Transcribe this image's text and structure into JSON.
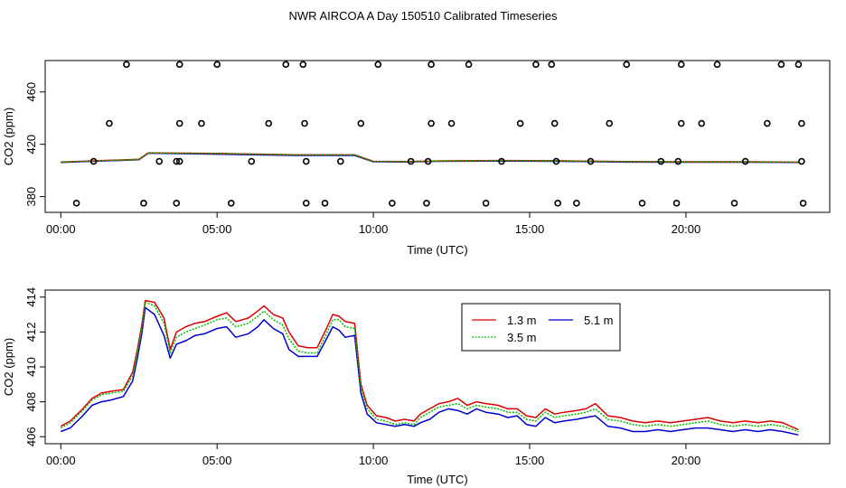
{
  "title": "NWR AIRCOA A  Day 150510  Calibrated Timeseries",
  "colors": {
    "h1": "#dd0000",
    "h2": "#00bb00",
    "h3": "#0000cc",
    "axis": "#000000",
    "cal": "#000000"
  },
  "chart_data": [
    {
      "type": "scatter",
      "title": "",
      "xlabel": "Time (UTC)",
      "ylabel": "CO2 (ppm)",
      "xlim": [
        -0.5,
        24.6
      ],
      "ylim": [
        368,
        484
      ],
      "xticks": [
        0,
        5,
        10,
        15,
        20
      ],
      "xtick_labels": [
        "00:00",
        "05:00",
        "10:00",
        "15:00",
        "20:00"
      ],
      "yticks": [
        380,
        420,
        460
      ],
      "ytick_labels": [
        "380",
        "420",
        "460"
      ],
      "calibration_points": {
        "x": [
          2.1,
          3.8,
          5.0,
          7.2,
          7.75,
          10.15,
          11.85,
          13.05,
          15.2,
          15.7,
          18.1,
          19.85,
          21.0,
          23.05,
          23.6,
          1.55,
          3.8,
          4.5,
          6.65,
          7.8,
          9.6,
          11.85,
          12.5,
          14.7,
          15.8,
          17.55,
          19.85,
          20.5,
          22.6,
          23.7,
          1.05,
          3.15,
          3.7,
          3.8,
          6.1,
          7.85,
          8.95,
          11.2,
          11.75,
          14.1,
          15.85,
          16.95,
          19.2,
          19.75,
          21.9,
          23.7,
          0.5,
          2.65,
          3.7,
          5.45,
          7.85,
          8.45,
          10.6,
          11.7,
          13.6,
          15.9,
          16.5,
          18.6,
          19.7,
          21.55,
          23.75
        ],
        "y": [
          481,
          481,
          481,
          481,
          481,
          481,
          481,
          481,
          481,
          481,
          481,
          481,
          481,
          481,
          481,
          436,
          436,
          436,
          436,
          436,
          436,
          436,
          436,
          436,
          436,
          436,
          436,
          436,
          436,
          436,
          407,
          407,
          407,
          407,
          407,
          407,
          407,
          407,
          407,
          407,
          407,
          407,
          407,
          407,
          407,
          407,
          375,
          375,
          375,
          375,
          375,
          375,
          375,
          375,
          375,
          375,
          375,
          375,
          375,
          375,
          375
        ]
      },
      "series": [
        {
          "name": "1.3 m",
          "x": [
            0,
            2.5,
            2.8,
            5,
            7.5,
            9.4,
            10,
            11,
            12,
            14,
            16,
            18,
            20,
            22,
            23.6
          ],
          "values": [
            406.5,
            408.5,
            413.5,
            413,
            412,
            412,
            407,
            406.8,
            407.3,
            407.6,
            407.4,
            406.8,
            406.7,
            406.7,
            406.4
          ]
        },
        {
          "name": "3.5 m",
          "x": [
            0,
            2.5,
            2.8,
            5,
            7.5,
            9.4,
            10,
            11,
            12,
            14,
            16,
            18,
            20,
            22,
            23.6
          ],
          "values": [
            406.4,
            408.4,
            413.4,
            412.9,
            411.9,
            411.9,
            406.9,
            406.7,
            407.2,
            407.5,
            407.3,
            406.7,
            406.6,
            406.6,
            406.3
          ]
        },
        {
          "name": "5.1 m",
          "x": [
            0,
            2.5,
            2.8,
            5,
            7.5,
            9.4,
            10,
            11,
            12,
            14,
            16,
            18,
            20,
            22,
            23.6
          ],
          "values": [
            406.2,
            408.2,
            413.2,
            412.5,
            411.5,
            411.5,
            406.7,
            406.5,
            407.0,
            407.2,
            407.0,
            406.4,
            406.3,
            406.3,
            406.1
          ]
        }
      ]
    },
    {
      "type": "line",
      "title": "",
      "xlabel": "Time (UTC)",
      "ylabel": "CO2 (ppm)",
      "xlim": [
        -0.5,
        24.6
      ],
      "ylim": [
        405.6,
        414.4
      ],
      "xticks": [
        0,
        5,
        10,
        15,
        20
      ],
      "xtick_labels": [
        "00:00",
        "05:00",
        "10:00",
        "15:00",
        "20:00"
      ],
      "yticks": [
        406,
        408,
        410,
        412,
        414
      ],
      "ytick_labels": [
        "406",
        "408",
        "410",
        "412",
        "414"
      ],
      "legend": {
        "position": "top-center",
        "entries": [
          "1.3 m",
          "3.5 m",
          "5.1 m"
        ]
      },
      "series": [
        {
          "name": "1.3 m",
          "x": [
            0,
            0.3,
            0.7,
            1.0,
            1.3,
            1.6,
            2.0,
            2.3,
            2.45,
            2.6,
            2.7,
            3.0,
            3.3,
            3.5,
            3.7,
            4.0,
            4.3,
            4.6,
            5.0,
            5.3,
            5.6,
            6.0,
            6.3,
            6.5,
            6.8,
            7.1,
            7.3,
            7.6,
            7.9,
            8.2,
            8.5,
            8.7,
            8.9,
            9.1,
            9.4,
            9.6,
            9.8,
            10.1,
            10.4,
            10.7,
            11.0,
            11.3,
            11.5,
            11.8,
            12.1,
            12.4,
            12.7,
            13.0,
            13.3,
            13.6,
            14.0,
            14.3,
            14.6,
            14.9,
            15.2,
            15.5,
            15.8,
            16.1,
            16.5,
            16.8,
            17.1,
            17.5,
            17.9,
            18.3,
            18.7,
            19.1,
            19.5,
            19.9,
            20.3,
            20.7,
            21.1,
            21.5,
            21.9,
            22.3,
            22.7,
            23.1,
            23.6
          ],
          "values": [
            406.6,
            406.9,
            407.6,
            408.2,
            408.5,
            408.6,
            408.7,
            409.7,
            411.0,
            412.5,
            413.8,
            413.7,
            412.8,
            411.0,
            412.0,
            412.3,
            412.5,
            412.6,
            412.9,
            413.1,
            412.6,
            412.8,
            413.2,
            413.5,
            413.0,
            412.8,
            412.0,
            411.2,
            411.1,
            411.1,
            412.2,
            413.0,
            412.9,
            412.6,
            412.5,
            409.0,
            407.8,
            407.2,
            407.1,
            406.9,
            407.0,
            406.9,
            407.3,
            407.6,
            407.9,
            408.0,
            408.2,
            407.8,
            408.0,
            407.9,
            407.8,
            407.6,
            407.6,
            407.2,
            407.1,
            407.6,
            407.3,
            407.4,
            407.5,
            407.6,
            407.9,
            407.2,
            407.1,
            406.9,
            406.8,
            406.9,
            406.8,
            406.9,
            407.0,
            407.1,
            406.9,
            406.8,
            406.9,
            406.8,
            406.9,
            406.8,
            406.4
          ]
        },
        {
          "name": "3.5 m",
          "x": [
            0,
            0.3,
            0.7,
            1.0,
            1.3,
            1.6,
            2.0,
            2.3,
            2.45,
            2.6,
            2.7,
            3.0,
            3.3,
            3.5,
            3.7,
            4.0,
            4.3,
            4.6,
            5.0,
            5.3,
            5.6,
            6.0,
            6.3,
            6.5,
            6.8,
            7.1,
            7.3,
            7.6,
            7.9,
            8.2,
            8.5,
            8.7,
            8.9,
            9.1,
            9.4,
            9.6,
            9.8,
            10.1,
            10.4,
            10.7,
            11.0,
            11.3,
            11.5,
            11.8,
            12.1,
            12.4,
            12.7,
            13.0,
            13.3,
            13.6,
            14.0,
            14.3,
            14.6,
            14.9,
            15.2,
            15.5,
            15.8,
            16.1,
            16.5,
            16.8,
            17.1,
            17.5,
            17.9,
            18.3,
            18.7,
            19.1,
            19.5,
            19.9,
            20.3,
            20.7,
            21.1,
            21.5,
            21.9,
            22.3,
            22.7,
            23.1,
            23.6
          ],
          "values": [
            406.5,
            406.8,
            407.5,
            408.1,
            408.4,
            408.5,
            408.6,
            409.5,
            410.8,
            412.3,
            413.7,
            413.5,
            412.5,
            410.8,
            411.7,
            412.0,
            412.2,
            412.4,
            412.7,
            412.8,
            412.3,
            412.5,
            412.9,
            413.2,
            412.7,
            412.4,
            411.6,
            410.9,
            410.8,
            410.8,
            411.9,
            412.7,
            412.7,
            412.3,
            412.2,
            408.8,
            407.6,
            407.0,
            406.9,
            406.7,
            406.8,
            406.7,
            407.1,
            407.4,
            407.7,
            407.8,
            407.9,
            407.6,
            407.8,
            407.7,
            407.6,
            407.4,
            407.4,
            407.0,
            406.9,
            407.4,
            407.1,
            407.2,
            407.3,
            407.4,
            407.6,
            407.0,
            406.9,
            406.7,
            406.6,
            406.7,
            406.6,
            406.7,
            406.8,
            406.9,
            406.7,
            406.6,
            406.7,
            406.6,
            406.7,
            406.6,
            406.3
          ]
        },
        {
          "name": "5.1 m",
          "x": [
            0,
            0.3,
            0.7,
            1.0,
            1.3,
            1.6,
            2.0,
            2.3,
            2.45,
            2.6,
            2.7,
            3.0,
            3.3,
            3.5,
            3.7,
            4.0,
            4.3,
            4.6,
            5.0,
            5.3,
            5.6,
            6.0,
            6.3,
            6.5,
            6.8,
            7.1,
            7.3,
            7.6,
            7.9,
            8.2,
            8.5,
            8.7,
            8.9,
            9.1,
            9.4,
            9.6,
            9.8,
            10.1,
            10.4,
            10.7,
            11.0,
            11.3,
            11.5,
            11.8,
            12.1,
            12.4,
            12.7,
            13.0,
            13.3,
            13.6,
            14.0,
            14.3,
            14.6,
            14.9,
            15.2,
            15.5,
            15.8,
            16.1,
            16.5,
            16.8,
            17.1,
            17.5,
            17.9,
            18.3,
            18.7,
            19.1,
            19.5,
            19.9,
            20.3,
            20.7,
            21.1,
            21.5,
            21.9,
            22.3,
            22.7,
            23.1,
            23.6
          ],
          "values": [
            406.3,
            406.5,
            407.2,
            407.8,
            408.0,
            408.1,
            408.3,
            409.2,
            410.5,
            412.0,
            413.4,
            413.0,
            411.8,
            410.5,
            411.3,
            411.5,
            411.8,
            411.9,
            412.2,
            412.3,
            411.7,
            411.9,
            412.3,
            412.7,
            412.2,
            411.9,
            411.0,
            410.6,
            410.6,
            410.6,
            411.6,
            412.3,
            412.1,
            411.7,
            411.8,
            408.5,
            407.3,
            406.8,
            406.7,
            406.6,
            406.7,
            406.6,
            406.8,
            407.0,
            407.4,
            407.6,
            407.5,
            407.3,
            407.6,
            407.4,
            407.3,
            407.1,
            407.2,
            406.7,
            406.6,
            407.1,
            406.8,
            406.9,
            407.0,
            407.1,
            407.2,
            406.6,
            406.5,
            406.3,
            406.3,
            406.4,
            406.3,
            406.4,
            406.5,
            406.5,
            406.4,
            406.3,
            406.4,
            406.3,
            406.4,
            406.3,
            406.1
          ]
        }
      ]
    }
  ]
}
